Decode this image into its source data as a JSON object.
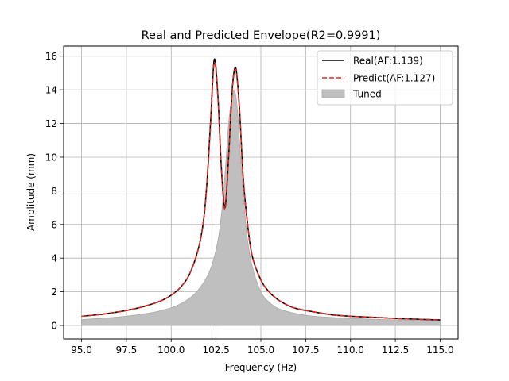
{
  "chart_data": {
    "type": "line",
    "title": "Real and Predicted Envelope(R2=0.9991)",
    "xlabel": "Frequency (Hz)",
    "ylabel": "Amplitude (mm)",
    "xlim": [
      94.0,
      116.0
    ],
    "ylim": [
      -0.8,
      16.6
    ],
    "xticks": [
      95.0,
      97.5,
      100.0,
      102.5,
      105.0,
      107.5,
      110.0,
      112.5,
      115.0
    ],
    "xtick_labels": [
      "95.0",
      "97.5",
      "100.0",
      "102.5",
      "105.0",
      "107.5",
      "110.0",
      "112.5",
      "115.0"
    ],
    "yticks": [
      0,
      2,
      4,
      6,
      8,
      10,
      12,
      14,
      16
    ],
    "ytick_labels": [
      "0",
      "2",
      "4",
      "6",
      "8",
      "10",
      "12",
      "14",
      "16"
    ],
    "grid": true,
    "legend_position": "top-right",
    "series": [
      {
        "name": "Real(AF:1.139)",
        "kind": "line",
        "style": "solid",
        "color": "#000000",
        "x": [
          95.0,
          96.0,
          97.0,
          98.0,
          99.0,
          99.5,
          100.0,
          100.5,
          101.0,
          101.5,
          101.8,
          102.0,
          102.2,
          102.4,
          102.6,
          102.8,
          103.0,
          103.2,
          103.4,
          103.6,
          103.8,
          104.0,
          104.2,
          104.5,
          105.0,
          105.5,
          106.0,
          106.5,
          107.0,
          108.0,
          109.0,
          110.0,
          112.0,
          113.0,
          115.0
        ],
        "y": [
          0.55,
          0.65,
          0.8,
          1.0,
          1.3,
          1.5,
          1.8,
          2.25,
          3.0,
          4.5,
          6.2,
          8.6,
          12.2,
          15.8,
          13.7,
          9.3,
          7.0,
          10.0,
          14.0,
          15.3,
          13.0,
          9.0,
          6.6,
          4.2,
          2.7,
          1.95,
          1.5,
          1.2,
          1.0,
          0.8,
          0.63,
          0.55,
          0.45,
          0.4,
          0.33
        ]
      },
      {
        "name": "Predict(AF:1.127)",
        "kind": "line",
        "style": "dashed",
        "color": "#e8251b",
        "x": [
          95.0,
          96.0,
          97.0,
          98.0,
          99.0,
          99.5,
          100.0,
          100.5,
          101.0,
          101.5,
          101.8,
          102.0,
          102.2,
          102.4,
          102.6,
          102.8,
          103.0,
          103.2,
          103.4,
          103.6,
          103.8,
          104.0,
          104.2,
          104.5,
          105.0,
          105.5,
          106.0,
          106.5,
          107.0,
          108.0,
          109.0,
          110.0,
          112.0,
          113.0,
          115.0
        ],
        "y": [
          0.55,
          0.65,
          0.8,
          1.0,
          1.3,
          1.5,
          1.8,
          2.25,
          3.0,
          4.5,
          6.2,
          8.5,
          12.0,
          15.6,
          13.6,
          9.2,
          6.9,
          9.9,
          13.9,
          15.2,
          12.9,
          9.0,
          6.6,
          4.2,
          2.7,
          1.95,
          1.5,
          1.2,
          1.0,
          0.8,
          0.63,
          0.55,
          0.45,
          0.4,
          0.33
        ]
      },
      {
        "name": "Tuned",
        "kind": "area",
        "color": "#bfbfbf",
        "x": [
          95.0,
          96.0,
          97.0,
          98.0,
          99.0,
          100.0,
          100.5,
          101.0,
          101.5,
          102.0,
          102.3,
          102.6,
          102.8,
          103.0,
          103.2,
          103.4,
          103.55,
          103.7,
          103.9,
          104.2,
          104.5,
          105.0,
          105.5,
          106.0,
          107.0,
          108.0,
          110.0,
          112.0,
          115.0
        ],
        "y": [
          0.35,
          0.42,
          0.5,
          0.62,
          0.78,
          1.05,
          1.28,
          1.6,
          2.1,
          2.9,
          3.7,
          5.0,
          6.6,
          9.0,
          12.0,
          13.6,
          13.9,
          12.7,
          9.5,
          5.6,
          3.6,
          2.0,
          1.35,
          1.0,
          0.7,
          0.55,
          0.42,
          0.35,
          0.28
        ]
      }
    ]
  }
}
